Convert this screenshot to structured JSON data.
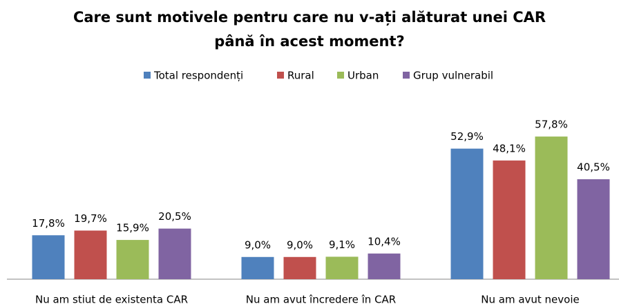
{
  "chart_data": {
    "type": "bar",
    "title": [
      "Care sunt motivele pentru care nu v-ați alăturat unei CAR",
      "până în acest moment?"
    ],
    "categories": [
      "Nu am stiut de existenta CAR",
      "Nu am avut încredere în CAR",
      "Nu am avut nevoie"
    ],
    "series": [
      {
        "name": "Total respondenți",
        "color": "#4f81bd",
        "values": [
          17.8,
          9.0,
          52.9
        ],
        "value_labels": [
          "17,8%",
          "9,0%",
          "52,9%"
        ]
      },
      {
        "name": "Rural",
        "color": "#c0504d",
        "values": [
          19.7,
          9.0,
          48.1
        ],
        "value_labels": [
          "19,7%",
          "9,0%",
          "48,1%"
        ]
      },
      {
        "name": "Urban",
        "color": "#9bbb59",
        "values": [
          15.9,
          9.1,
          57.8
        ],
        "value_labels": [
          "15,9%",
          "9,1%",
          "57,8%"
        ]
      },
      {
        "name": "Grup vulnerabil",
        "color": "#8064a2",
        "values": [
          20.5,
          10.4,
          40.5
        ],
        "value_labels": [
          "20,5%",
          "10,4%",
          "40,5%"
        ]
      }
    ],
    "legend": "top"
  }
}
